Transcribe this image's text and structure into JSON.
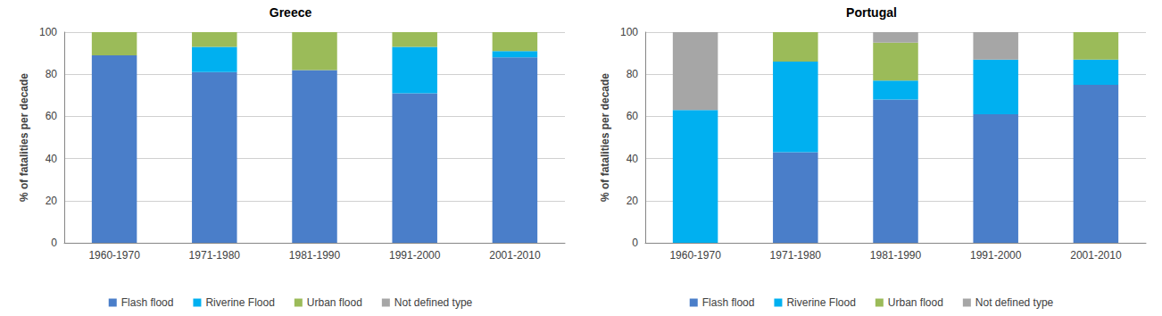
{
  "chart_data": [
    {
      "type": "bar",
      "title": "Greece",
      "ylabel": "% of fatalities per decade",
      "categories": [
        "1960-1970",
        "1971-1980",
        "1981-1990",
        "1991-2000",
        "2001-2010"
      ],
      "series": [
        {
          "name": "Flash flood",
          "color": "#4a7ec9",
          "values": [
            89,
            81,
            82,
            71,
            88
          ]
        },
        {
          "name": "Riverine Flood",
          "color": "#00b0f0",
          "values": [
            0,
            12,
            0,
            22,
            3
          ]
        },
        {
          "name": "Urban flood",
          "color": "#9bbb59",
          "values": [
            11,
            7,
            18,
            7,
            9
          ]
        },
        {
          "name": "Not defined type",
          "color": "#a6a6a6",
          "values": [
            0,
            0,
            0,
            0,
            0
          ]
        }
      ],
      "ylim": [
        0,
        100
      ],
      "yticks": [
        0,
        20,
        40,
        60,
        80,
        100
      ],
      "grid": true,
      "stacked": true,
      "legend": "bottom"
    },
    {
      "type": "bar",
      "title": "Portugal",
      "ylabel": "% of fatalities per decade",
      "categories": [
        "1960-1970",
        "1971-1980",
        "1981-1990",
        "1991-2000",
        "2001-2010"
      ],
      "series": [
        {
          "name": "Flash flood",
          "color": "#4a7ec9",
          "values": [
            0,
            43,
            68,
            61,
            75
          ]
        },
        {
          "name": "Riverine Flood",
          "color": "#00b0f0",
          "values": [
            63,
            43,
            9,
            26,
            12
          ]
        },
        {
          "name": "Urban flood",
          "color": "#9bbb59",
          "values": [
            0,
            14,
            18,
            0,
            13
          ]
        },
        {
          "name": "Not defined type",
          "color": "#a6a6a6",
          "values": [
            37,
            0,
            5,
            13,
            0
          ]
        }
      ],
      "ylim": [
        0,
        100
      ],
      "yticks": [
        0,
        20,
        40,
        60,
        80,
        100
      ],
      "grid": true,
      "stacked": true,
      "legend": "bottom"
    }
  ]
}
